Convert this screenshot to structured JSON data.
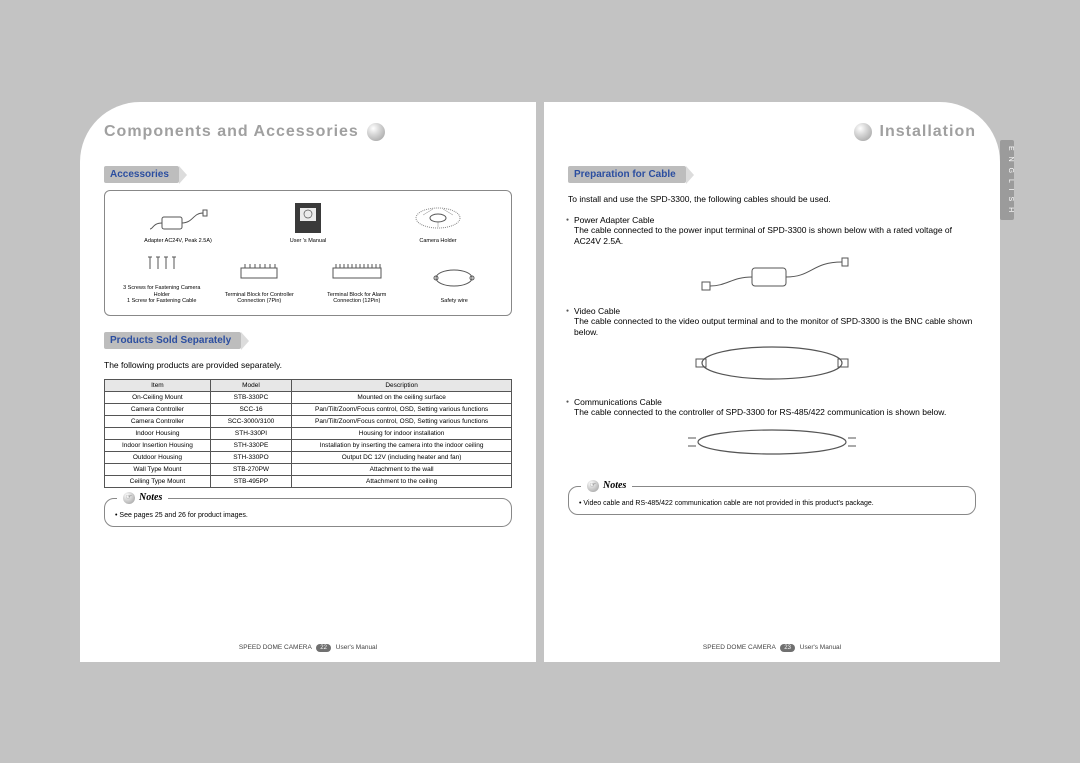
{
  "left": {
    "chapter": "Components and Accessories",
    "section_accessories": "Accessories",
    "accessories_row1": [
      {
        "label": "Adapter AC24V, Peak 2.5A)"
      },
      {
        "label": "User 's Manual"
      },
      {
        "label": "Camera Holder"
      }
    ],
    "accessories_row2": [
      {
        "label": "3 Screws for Fastening Camera Holder\n1 Screw for Fastening Cable"
      },
      {
        "label": "Terminal Block for Controller\nConnection (7Pin)"
      },
      {
        "label": "Terminal Block for Alarm\nConnection (12Pin)"
      },
      {
        "label": "Safety wire"
      }
    ],
    "section_separate": "Products Sold Separately",
    "separate_intro": "The following products are provided separately.",
    "table": {
      "headers": [
        "Item",
        "Model",
        "Description"
      ],
      "rows": [
        [
          "On-Ceiling Mount",
          "STB-330PC",
          "Mounted on the ceiling surface"
        ],
        [
          "Camera Controller",
          "SCC-16",
          "Pan/Tilt/Zoom/Focus control, OSD, Setting various functions"
        ],
        [
          "Camera Controller",
          "SCC-3000/3100",
          "Pan/Tilt/Zoom/Focus control, OSD, Setting various functions"
        ],
        [
          "Indoor Housing",
          "STH-330PI",
          "Housing for indoor installation"
        ],
        [
          "Indoor Insertion Housing",
          "STH-330PE",
          "Installation by inserting the camera into the indoor ceiling"
        ],
        [
          "Outdoor Housing",
          "STH-330PO",
          "Output DC 12V (including heater and fan)"
        ],
        [
          "Wall Type Mount",
          "STB-270PW",
          "Attachment to the wall"
        ],
        [
          "Ceiling Type Mount",
          "STB-495PP",
          "Attachment to the ceiling"
        ]
      ]
    },
    "notes_label": "Notes",
    "notes_text": "• See pages 25 and 26 for product images.",
    "footer_product": "SPEED DOME CAMERA",
    "footer_page": "22",
    "footer_suffix": "User's Manual"
  },
  "right": {
    "chapter": "Installation",
    "section_cable": "Preparation for Cable",
    "intro": "To install and use the SPD-3300, the following cables should be used.",
    "cables": [
      {
        "title": "Power Adapter Cable",
        "desc": "The cable connected to the power input terminal of SPD-3300 is shown below with a rated voltage of AC24V 2.5A."
      },
      {
        "title": "Video Cable",
        "desc": "The cable connected to the video output terminal and to the monitor of SPD-3300 is the BNC cable shown below."
      },
      {
        "title": "Communications Cable",
        "desc": "The cable connected to the controller of SPD-3300 for RS-485/422 communication is shown below."
      }
    ],
    "notes_label": "Notes",
    "notes_text": "• Video cable and RS-485/422 communication cable are not provided in this product's package.",
    "lang_tab": "E N G L I S H",
    "footer_product": "SPEED DOME CAMERA",
    "footer_page": "23",
    "footer_suffix": "User's Manual"
  },
  "colors": {
    "page_bg": "#ffffff",
    "outer_bg": "#c3c3c3",
    "heading_gray": "#a0a0a0",
    "section_bar_bg": "#bdbdbd",
    "section_text": "#2b4ea0",
    "border": "#888888",
    "lang_tab_bg": "#9b9b9b"
  }
}
